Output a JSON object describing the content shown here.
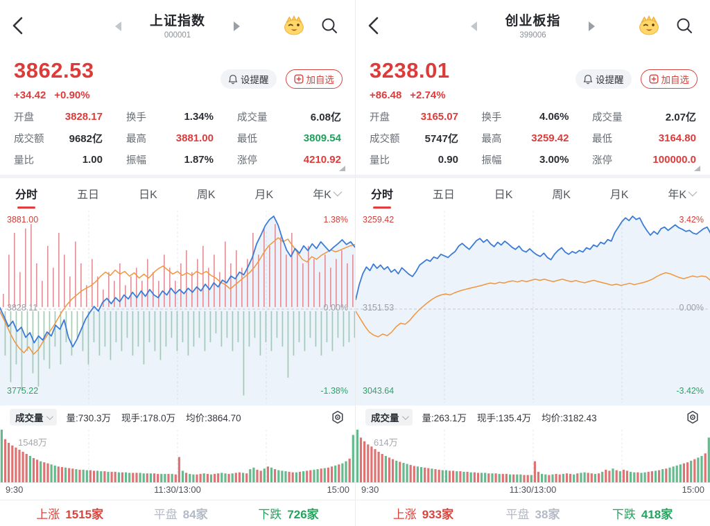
{
  "colors": {
    "red": "#dd3b3a",
    "green": "#1ea05c",
    "flat_gray": "#b3bac6",
    "blue_line": "#3b7bd8",
    "orange_line": "#f0953c",
    "vol_red": "#dd7373",
    "vol_green": "#64b98d",
    "overlay_red": "#d9717a",
    "overlay_green": "#85c49d"
  },
  "icons": {
    "back": "back-chevron",
    "prev": "left-triangle",
    "next": "right-triangle",
    "mascot": "yellow-crown-face",
    "search": "magnifier",
    "alert": "bell",
    "add": "plus-square",
    "settings": "gear",
    "expand": "corner-triangle",
    "dropdown": "chevron-down"
  },
  "panels": [
    {
      "header": {
        "title": "上证指数",
        "code": "000001"
      },
      "price": {
        "last": "3862.53",
        "change": "+34.42",
        "change_pct": "+0.90%"
      },
      "actions": {
        "alert": "设提醒",
        "add": "加自选"
      },
      "stats": [
        {
          "label": "开盘",
          "value": "3828.17",
          "color": "red"
        },
        {
          "label": "换手",
          "value": "1.34%",
          "color": "dark"
        },
        {
          "label": "成交量",
          "value": "6.08亿",
          "color": "dark"
        },
        {
          "label": "成交额",
          "value": "9682亿",
          "color": "dark"
        },
        {
          "label": "最高",
          "value": "3881.00",
          "color": "red"
        },
        {
          "label": "最低",
          "value": "3809.54",
          "color": "green"
        },
        {
          "label": "量比",
          "value": "1.00",
          "color": "dark"
        },
        {
          "label": "振幅",
          "value": "1.87%",
          "color": "dark"
        },
        {
          "label": "涨停",
          "value": "4210.92",
          "color": "red"
        }
      ],
      "tabs": [
        "分时",
        "五日",
        "日K",
        "周K",
        "月K",
        "年K"
      ],
      "y_axis": {
        "high": "3881.00",
        "high_pct": "1.38%",
        "mid": "3828.11",
        "mid_pct": "0.00%",
        "low": "3775.22",
        "low_pct": "-1.38%"
      },
      "volume_header": {
        "name": "成交量",
        "vol": "量:730.3万",
        "cur": "现手:178.0万",
        "avg": "均价:3864.70"
      },
      "volume_max": "1548万",
      "axis": {
        "open": "9:30",
        "mid": "11:30/13:00",
        "close": "15:00"
      },
      "breadth": {
        "up_label": "上涨",
        "up_value": "1515家",
        "flat_label": "平盘",
        "flat_value": "84家",
        "down_label": "下跌",
        "down_value": "726家"
      }
    },
    {
      "header": {
        "title": "创业板指",
        "code": "399006"
      },
      "price": {
        "last": "3238.01",
        "change": "+86.48",
        "change_pct": "+2.74%"
      },
      "actions": {
        "alert": "设提醒",
        "add": "加自选"
      },
      "stats": [
        {
          "label": "开盘",
          "value": "3165.07",
          "color": "red"
        },
        {
          "label": "换手",
          "value": "4.06%",
          "color": "dark"
        },
        {
          "label": "成交量",
          "value": "2.07亿",
          "color": "dark"
        },
        {
          "label": "成交额",
          "value": "5747亿",
          "color": "dark"
        },
        {
          "label": "最高",
          "value": "3259.42",
          "color": "red"
        },
        {
          "label": "最低",
          "value": "3164.80",
          "color": "red"
        },
        {
          "label": "量比",
          "value": "0.90",
          "color": "dark"
        },
        {
          "label": "振幅",
          "value": "3.00%",
          "color": "dark"
        },
        {
          "label": "涨停",
          "value": "100000.0",
          "color": "red"
        }
      ],
      "tabs": [
        "分时",
        "五日",
        "日K",
        "周K",
        "月K",
        "年K"
      ],
      "y_axis": {
        "high": "3259.42",
        "high_pct": "3.42%",
        "mid": "3151.53",
        "mid_pct": "0.00%",
        "low": "3043.64",
        "low_pct": "-3.42%"
      },
      "volume_header": {
        "name": "成交量",
        "vol": "量:263.1万",
        "cur": "现手:135.4万",
        "avg": "均价:3182.43"
      },
      "volume_max": "614万",
      "axis": {
        "open": "9:30",
        "mid": "11:30/13:00",
        "close": "15:00"
      },
      "breadth": {
        "up_label": "上涨",
        "up_value": "933家",
        "flat_label": "平盘",
        "flat_value": "38家",
        "down_label": "下跌",
        "down_value": "418家"
      }
    }
  ],
  "chart_data": [
    {
      "type": "line",
      "title": "上证指数 分时图",
      "pct_max": 1.38,
      "x_ticks": [
        "9:30",
        "11:30/13:00",
        "15:00"
      ],
      "y_labels": {
        "high": "3881.00",
        "mid": "3828.11",
        "low": "3775.22",
        "high_pct": "1.38%",
        "mid_pct": "0.00%",
        "low_pct": "-1.38%"
      },
      "series": [
        {
          "name": "price_pct",
          "values": [
            0.02,
            -0.12,
            -0.26,
            -0.18,
            -0.33,
            -0.27,
            -0.42,
            -0.35,
            -0.5,
            -0.4,
            -0.46,
            -0.34,
            -0.4,
            -0.24,
            -0.3,
            -0.16,
            -0.42,
            -0.56,
            -0.45,
            -0.3,
            -0.15,
            -0.05,
            0.04,
            -0.03,
            0.1,
            0.16,
            0.08,
            0.17,
            0.11,
            0.21,
            0.15,
            0.25,
            0.17,
            0.27,
            0.19,
            0.29,
            0.21,
            0.17,
            0.27,
            0.21,
            0.31,
            0.23,
            0.29,
            0.23,
            0.31,
            0.25,
            0.33,
            0.27,
            0.37,
            0.29,
            0.39,
            0.33,
            0.43,
            0.39,
            0.49,
            0.45,
            0.55,
            0.51,
            0.63,
            0.77,
            0.97,
            1.1,
            1.24,
            1.33,
            1.38,
            1.25,
            1.05,
            0.88,
            0.78,
            0.9,
            0.83,
            0.94,
            0.87,
            0.97,
            0.9,
            1.0,
            0.93,
            0.86,
            0.92,
            0.97,
            1.03,
            0.96,
            1.0,
            0.92
          ]
        },
        {
          "name": "avg_pct",
          "values": [
            -0.04,
            -0.18,
            -0.34,
            -0.48,
            -0.58,
            -0.65,
            -0.56,
            -0.67,
            -0.6,
            -0.48,
            -0.37,
            -0.27,
            -0.15,
            -0.03,
            0.07,
            0.15,
            0.21,
            0.27,
            0.31,
            0.35,
            0.41,
            0.49,
            0.55,
            0.5,
            0.58,
            0.52,
            0.56,
            0.49,
            0.54,
            0.46,
            0.52,
            0.46,
            0.54,
            0.6,
            0.64,
            0.58,
            0.52,
            0.56,
            0.5,
            0.54,
            0.5,
            0.56,
            0.52,
            0.56,
            0.5,
            0.46,
            0.4,
            0.36,
            0.3,
            0.36,
            0.42,
            0.48,
            0.54,
            0.62,
            0.72,
            0.84,
            0.94,
            1.0,
            1.06,
            1.0,
            1.04,
            0.94,
            0.84,
            0.74,
            0.7,
            0.78,
            0.74,
            0.8,
            0.84,
            0.88,
            0.85,
            0.88,
            0.91,
            0.94,
            0.96
          ]
        }
      ],
      "overlay_bars": {
        "up": [
          0.15,
          0.6,
          0.85,
          0.4,
          0.9,
          0.95,
          0.5,
          0.3,
          0.7,
          0.45,
          0.85,
          0.6,
          0.35,
          0.75,
          0.5,
          0.25,
          0.55,
          0.35,
          0.2,
          0.4,
          0.3,
          0.5,
          0.25,
          0.35,
          0.45,
          0.3,
          0.55,
          0.4,
          0.3,
          0.6,
          0.45,
          0.3,
          0.5,
          0.65,
          0.4,
          0.55,
          0.7,
          0.45,
          0.6,
          0.4,
          0.75,
          0.5,
          0.65,
          0.45,
          0.55,
          0.85,
          0.6,
          0.9,
          0.7,
          0.95,
          0.8,
          0.6,
          0.85,
          0.65,
          0.5,
          0.7,
          0.55,
          0.4,
          0.6,
          0.45,
          0.55,
          0.65,
          0.5,
          0.6
        ],
        "down": [
          0.5,
          0.8,
          0.6,
          0.9,
          0.45,
          0.7,
          0.85,
          0.55,
          0.65,
          0.4,
          0.6,
          0.35,
          0.5,
          0.3,
          0.45,
          0.6,
          0.35,
          0.5,
          0.4,
          0.55,
          0.35,
          0.45,
          0.3,
          0.5,
          0.4,
          0.6,
          0.35,
          0.45,
          0.55,
          0.4,
          0.3,
          0.45,
          0.35,
          0.5,
          0.4,
          0.3,
          0.45,
          0.35,
          0.25,
          0.4,
          0.3,
          0.45,
          0.35,
          0.95,
          0.4,
          0.3,
          0.5,
          0.35,
          0.45,
          0.3,
          0.4,
          0.75,
          0.5,
          0.35,
          0.45,
          0.3,
          0.4,
          0.5,
          0.35,
          0.45,
          0.3,
          0.4,
          0.35,
          0.3
        ]
      },
      "volume": {
        "max_label": "1548万",
        "heights": [
          100,
          82,
          75,
          70,
          66,
          62,
          58,
          54,
          50,
          46,
          43,
          40,
          38,
          36,
          34,
          32,
          30,
          29,
          28,
          27,
          26,
          25,
          24,
          24,
          23,
          23,
          22,
          22,
          21,
          21,
          20,
          20,
          20,
          19,
          19,
          19,
          18,
          18,
          18,
          18,
          17,
          17,
          17,
          17,
          16,
          16,
          16,
          16,
          16,
          15,
          48,
          22,
          18,
          16,
          15,
          15,
          16,
          17,
          16,
          15,
          16,
          17,
          18,
          17,
          16,
          17,
          18,
          19,
          18,
          17,
          25,
          28,
          24,
          22,
          26,
          30,
          28,
          25,
          23,
          22,
          21,
          20,
          19,
          19,
          20,
          21,
          22,
          23,
          24,
          25,
          26,
          27,
          28,
          30,
          32,
          34,
          36,
          40,
          45,
          90
        ],
        "colors": "grrrrrrrgrrgrrggrrgrrgrggrrggrgrrgrggrrggrgrrggrgrrgrggrrgrgrrggrgrrgrggrrgrgrgggrrgrgrrggrgrrgrggrgg"
      }
    },
    {
      "type": "line",
      "title": "创业板指 分时图",
      "pct_max": 3.42,
      "x_ticks": [
        "9:30",
        "11:30/13:00",
        "15:00"
      ],
      "y_labels": {
        "high": "3259.42",
        "mid": "3151.53",
        "low": "3043.64",
        "high_pct": "3.42%",
        "mid_pct": "0.00%",
        "low_pct": "-3.42%"
      },
      "series": [
        {
          "name": "price_pct",
          "values": [
            0.35,
            0.9,
            1.3,
            1.55,
            1.42,
            1.66,
            1.5,
            1.62,
            1.46,
            1.56,
            1.36,
            1.46,
            1.3,
            1.52,
            1.4,
            1.28,
            1.2,
            1.38,
            1.62,
            1.72,
            1.82,
            1.76,
            1.92,
            1.86,
            2.02,
            1.96,
            1.9,
            2.02,
            2.12,
            2.32,
            2.42,
            2.3,
            2.2,
            2.36,
            2.52,
            2.6,
            2.46,
            2.56,
            2.4,
            2.3,
            2.46,
            2.36,
            2.5,
            2.4,
            2.28,
            2.2,
            2.32,
            2.16,
            2.1,
            2.22,
            2.1,
            2.0,
            1.94,
            2.06,
            1.9,
            1.82,
            2.02,
            2.16,
            2.26,
            2.1,
            2.02,
            2.12,
            2.06,
            2.16,
            2.1,
            2.26,
            2.2,
            2.36,
            2.3,
            2.46,
            2.4,
            2.56,
            2.5,
            2.82,
            3.02,
            3.22,
            3.36,
            3.26,
            3.42,
            3.3,
            3.36,
            3.1,
            2.9,
            2.72,
            2.86,
            2.76,
            2.96,
            3.02,
            2.9,
            3.0,
            3.1,
            3.0,
            2.94,
            2.86,
            2.9,
            2.8,
            2.76,
            2.86,
            2.96,
            3.02,
            2.78
          ]
        },
        {
          "name": "avg_pct",
          "values": [
            -0.08,
            -0.35,
            -0.62,
            -0.84,
            -0.96,
            -1.02,
            -0.92,
            -0.98,
            -0.85,
            -0.65,
            -0.52,
            -0.56,
            -0.42,
            -0.22,
            -0.05,
            0.1,
            0.24,
            0.36,
            0.46,
            0.52,
            0.56,
            0.52,
            0.6,
            0.66,
            0.71,
            0.75,
            0.79,
            0.83,
            0.87,
            0.92,
            0.96,
            0.93,
            0.99,
            0.96,
            1.01,
            1.04,
            1.0,
            1.05,
            1.01,
            1.06,
            1.1,
            1.06,
            1.1,
            1.05,
            1.01,
            1.06,
            1.1,
            1.05,
            1.01,
            1.05,
            1.0,
            0.97,
            1.02,
            1.06,
            1.01,
            0.97,
            0.93,
            0.88,
            0.92,
            0.87,
            0.91,
            0.95,
            0.9,
            0.94,
            0.98,
            1.03,
            1.1,
            1.2,
            1.28,
            1.34,
            1.3,
            1.23,
            1.16,
            1.12,
            1.17,
            1.22,
            1.18,
            1.22,
            1.19,
            1.05
          ]
        }
      ],
      "overlay_bars": {
        "up": [],
        "down": []
      },
      "volume": {
        "max_label": "614万",
        "heights": [
          100,
          85,
          78,
          72,
          68,
          63,
          58,
          54,
          50,
          47,
          44,
          41,
          39,
          37,
          35,
          33,
          31,
          30,
          29,
          28,
          27,
          26,
          25,
          24,
          23,
          23,
          22,
          22,
          21,
          21,
          20,
          20,
          19,
          19,
          18,
          18,
          18,
          17,
          17,
          17,
          16,
          16,
          16,
          15,
          15,
          15,
          15,
          14,
          14,
          14,
          40,
          20,
          16,
          15,
          14,
          15,
          16,
          15,
          16,
          17,
          16,
          15,
          17,
          18,
          19,
          18,
          17,
          16,
          17,
          20,
          24,
          22,
          26,
          23,
          21,
          24,
          22,
          20,
          19,
          19,
          18,
          19,
          20,
          21,
          22,
          23,
          25,
          26,
          28,
          30,
          32,
          34,
          36,
          38,
          41,
          44,
          47,
          50,
          55,
          85
        ],
        "colors": "grrrrrrrgrrgrggrrggrrgrrggrrgrgrgrrggrgrgrrgrggrrgrrggrgrrgrrgrggrrgrgrrgrgrrggrggrrgrgrggggrrgrggrgg"
      }
    }
  ]
}
